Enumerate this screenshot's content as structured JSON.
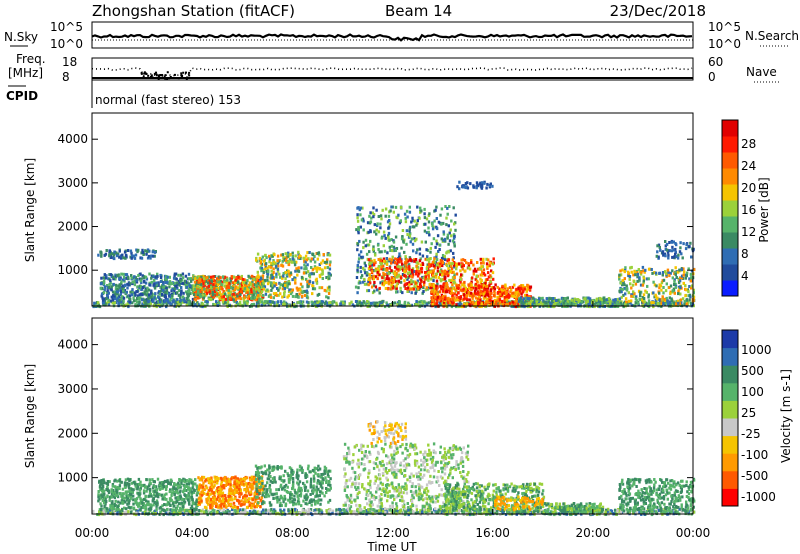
{
  "header": {
    "title": "Zhongshan Station (fitACF)",
    "beam": "Beam 14",
    "date": "23/Dec/2018"
  },
  "colors": {
    "scale_power": [
      "#0a1cff",
      "#204b9c",
      "#2f6db3",
      "#3a8a63",
      "#56b36a",
      "#9bd13a",
      "#f5c400",
      "#ff8a00",
      "#ff5a00",
      "#ff1a00",
      "#e00000"
    ],
    "scale_velocity": [
      "#ff0000",
      "#ff5a00",
      "#ff9a00",
      "#f5c400",
      "#c8c8c8",
      "#9bd13a",
      "#56b36a",
      "#3a8a63",
      "#2f6db3",
      "#1c3aa8"
    ]
  },
  "chart_data": [
    {
      "type": "line",
      "name": "nsky-nsearch",
      "left_label": "N.Sky",
      "right_label": "N.Search",
      "left_ticks": [
        "10^5",
        "10^0"
      ],
      "right_ticks": [
        "10^5",
        "10^0"
      ]
    },
    {
      "type": "line",
      "name": "freq-nave",
      "left_label_1": "Freq.",
      "left_label_2": "[MHz]",
      "right_label": "Nave",
      "left_ticks": [
        "18",
        "8"
      ],
      "right_ticks": [
        "60",
        "0"
      ]
    },
    {
      "type": "table",
      "name": "cpid",
      "label": "CPID",
      "value": "normal (fast stereo) 153"
    },
    {
      "type": "heatmap",
      "name": "power",
      "ylabel": "Slant Range [km]",
      "yticks": [
        1000,
        2000,
        3000,
        4000
      ],
      "ylim": [
        180,
        4600
      ],
      "xlim": [
        0,
        24
      ],
      "colorbar_label": "Power [dB]",
      "colorbar_ticks": [
        4,
        8,
        12,
        16,
        20,
        24,
        28
      ]
    },
    {
      "type": "heatmap",
      "name": "velocity",
      "ylabel": "Slant Range [km]",
      "yticks": [
        1000,
        2000,
        3000,
        4000
      ],
      "ylim": [
        180,
        4600
      ],
      "xlim": [
        0,
        24
      ],
      "colorbar_label": "Velocity [m s-1]",
      "colorbar_ticks": [
        "1000",
        "500",
        "100",
        "25",
        "-25",
        "-100",
        "-500",
        "-1000"
      ]
    }
  ],
  "xaxis": {
    "ticks": [
      "00:00",
      "04:00",
      "08:00",
      "12:00",
      "16:00",
      "20:00",
      "00:00"
    ],
    "label": "Time UT"
  }
}
